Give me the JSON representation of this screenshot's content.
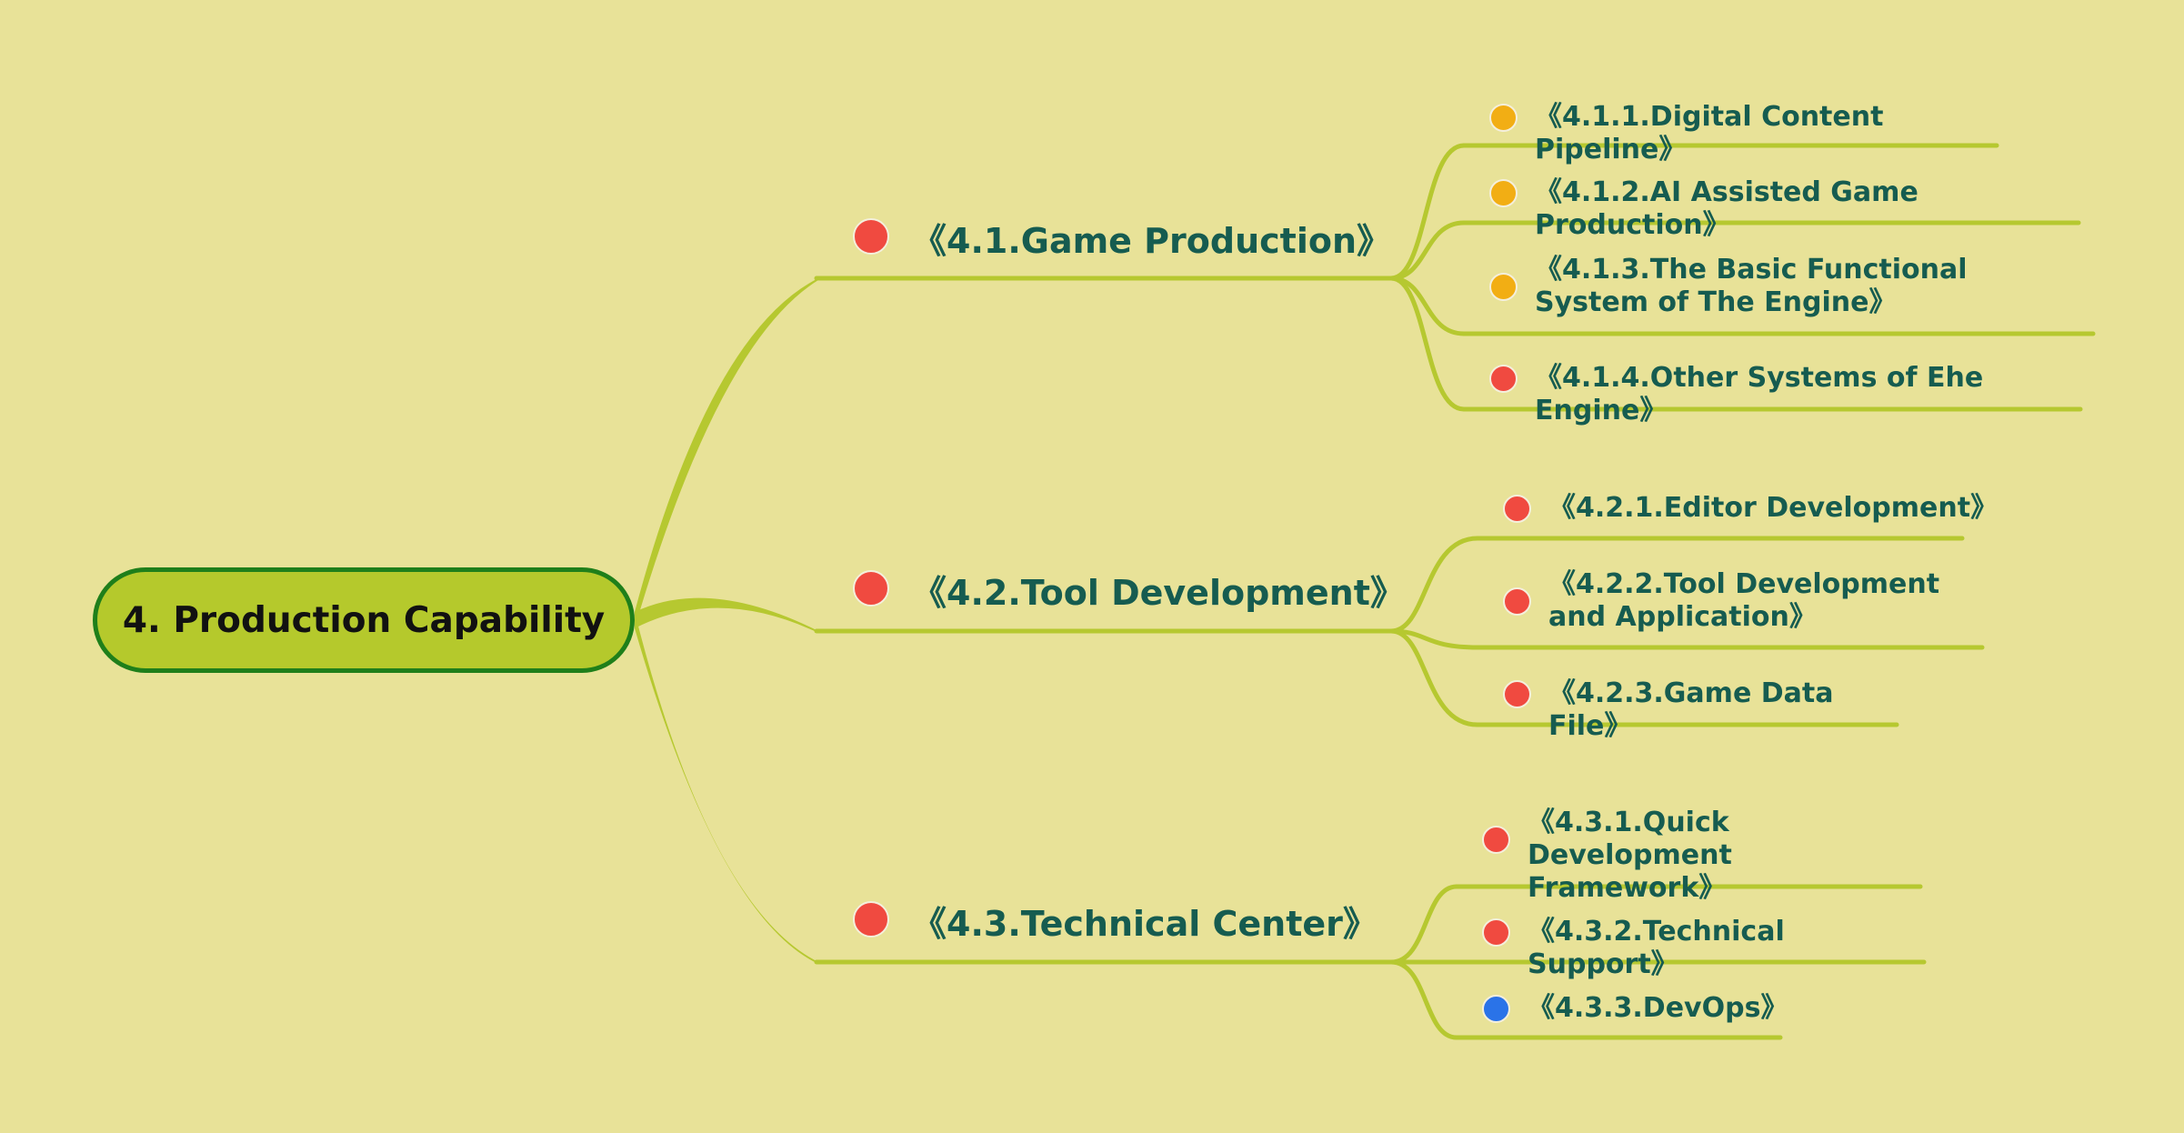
{
  "root": {
    "label": "4. Production Capability"
  },
  "colors": {
    "background": "#e8e298",
    "branch": "#b6c830",
    "root_fill": "#b5c92c",
    "root_border": "#1f7f1a",
    "text": "#165c50",
    "red": "#f04a40",
    "orange": "#f2ae14",
    "blue": "#2a73e8"
  },
  "topics": [
    {
      "label": "《4.1.Game Production》",
      "marker": "red",
      "children": [
        {
          "label": "《4.1.1.Digital Content Pipeline》",
          "marker": "orange"
        },
        {
          "label": "《4.1.2.AI Assisted Game Production》",
          "marker": "orange"
        },
        {
          "label": "《4.1.3.The Basic Functional System of The Engine》",
          "marker": "orange"
        },
        {
          "label": "《4.1.4.Other Systems of Ehe Engine》",
          "marker": "red"
        }
      ]
    },
    {
      "label": "《4.2.Tool Development》",
      "marker": "red",
      "children": [
        {
          "label": "《4.2.1.Editor Development》",
          "marker": "red"
        },
        {
          "label": "《4.2.2.Tool Development and Application》",
          "marker": "red"
        },
        {
          "label": "《4.2.3.Game Data File》",
          "marker": "red"
        }
      ]
    },
    {
      "label": "《4.3.Technical Center》",
      "marker": "red",
      "children": [
        {
          "label": "《4.3.1.Quick Development Framework》",
          "marker": "red"
        },
        {
          "label": "《4.3.2.Technical Support》",
          "marker": "red"
        },
        {
          "label": "《4.3.3.DevOps》",
          "marker": "blue"
        }
      ]
    }
  ]
}
